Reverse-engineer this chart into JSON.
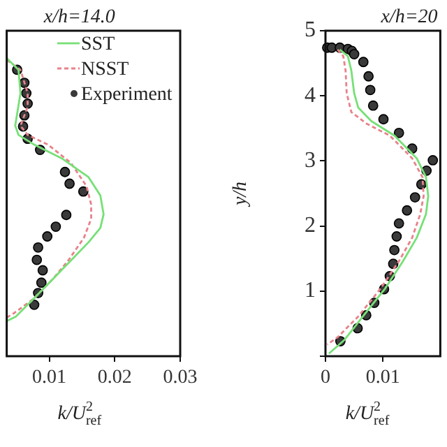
{
  "chart_data": [
    {
      "type": "line",
      "title": "x/h=14.0",
      "xlabel": "k/U$_{ref}$$^{2}$",
      "xlim": [
        0.0035,
        0.03
      ],
      "xticks": [
        0.01,
        0.02,
        0.03
      ],
      "ylim": [
        0,
        5
      ],
      "tick_labels": "x",
      "grid": false,
      "legend": "top right",
      "series": [
        {
          "name": "SST",
          "type": "line",
          "color": "#77e077",
          "line_style": "solid",
          "marker": "none",
          "x": [
            0.0035,
            0.0053,
            0.0056,
            0.0048,
            0.0053,
            0.0077,
            0.0119,
            0.016,
            0.0178,
            0.0183,
            0.0178,
            0.016,
            0.0133,
            0.0105,
            0.0077,
            0.0049,
            0.0035
          ],
          "values": [
            4.58,
            4.4,
            4.04,
            3.54,
            3.4,
            3.25,
            3.04,
            2.75,
            2.47,
            2.18,
            1.97,
            1.75,
            1.47,
            1.18,
            0.89,
            0.61,
            0.54
          ]
        },
        {
          "name": "NSST",
          "type": "line",
          "color": "#e8828a",
          "line_style": "dashed",
          "marker": "none",
          "x": [
            0.0035,
            0.0056,
            0.0067,
            0.0067,
            0.0056,
            0.0067,
            0.0098,
            0.0133,
            0.0157,
            0.0164,
            0.0164,
            0.0153,
            0.0129,
            0.0105,
            0.0077,
            0.0046,
            0.0036
          ],
          "values": [
            4.55,
            4.4,
            4.04,
            3.83,
            3.54,
            3.4,
            3.25,
            2.97,
            2.61,
            2.33,
            2.11,
            1.82,
            1.47,
            1.18,
            0.89,
            0.66,
            0.6
          ]
        },
        {
          "name": "Experiment",
          "type": "scatter",
          "color": "#3a3a3a",
          "marker": "circle",
          "x": [
            0.0051,
            0.0062,
            0.0065,
            0.0067,
            0.0062,
            0.006,
            0.0067,
            0.0086,
            0.0124,
            0.0131,
            0.0152,
            0.0126,
            0.011,
            0.0097,
            0.0083,
            0.0081,
            0.009,
            0.0088,
            0.0083,
            0.0077
          ],
          "values": [
            4.4,
            4.2,
            4.04,
            3.88,
            3.7,
            3.53,
            3.34,
            3.17,
            2.83,
            2.65,
            2.53,
            2.17,
            1.99,
            1.84,
            1.67,
            1.48,
            1.32,
            1.13,
            0.97,
            0.79
          ]
        }
      ]
    },
    {
      "type": "line",
      "title": "x/h=20",
      "xlabel": "k/U$_{ref}$$^{2}$",
      "ylabel": "y/h",
      "xlim": [
        0,
        0.02
      ],
      "xticks": [
        0,
        0.01
      ],
      "ylim": [
        0,
        5
      ],
      "yticks": [
        {
          "value": 0,
          "label": null
        },
        1,
        2,
        3,
        4,
        5
      ],
      "grid": false,
      "legend": false,
      "series": [
        {
          "type": "line",
          "color": "#77e077",
          "line_style": "solid",
          "marker": "none",
          "x": [
            0.0025,
            0.0039,
            0.0045,
            0.005,
            0.0057,
            0.008,
            0.012,
            0.0159,
            0.0175,
            0.0179,
            0.0175,
            0.0159,
            0.0135,
            0.0104,
            0.0065,
            0.0033,
            0.0006
          ],
          "values": [
            4.71,
            4.61,
            4.39,
            4.04,
            3.82,
            3.61,
            3.39,
            3.04,
            2.75,
            2.46,
            2.18,
            1.82,
            1.46,
            1.04,
            0.61,
            0.25,
            0.04
          ]
        },
        {
          "type": "line",
          "color": "#e8828a",
          "line_style": "dashed",
          "marker": "none",
          "x": [
            0.0021,
            0.0031,
            0.0035,
            0.0037,
            0.0045,
            0.0072,
            0.0112,
            0.0151,
            0.0169,
            0.0171,
            0.0165,
            0.0151,
            0.0128,
            0.0096,
            0.0057,
            0.0021,
            0.0003
          ],
          "values": [
            4.71,
            4.61,
            4.39,
            4.04,
            3.75,
            3.57,
            3.39,
            3.04,
            2.75,
            2.46,
            2.18,
            1.82,
            1.46,
            1.04,
            0.61,
            0.29,
            0.18
          ]
        },
        {
          "type": "scatter",
          "color": "#3a3a3a",
          "marker": "circle",
          "x": [
            0.0003,
            0.0011,
            0.0025,
            0.0039,
            0.0046,
            0.005,
            0.0066,
            0.0075,
            0.0078,
            0.0083,
            0.0101,
            0.0128,
            0.0151,
            0.0187,
            0.0176,
            0.0167,
            0.0156,
            0.0142,
            0.0128,
            0.0124,
            0.012,
            0.0118,
            0.0112,
            0.0102,
            0.0085,
            0.0071,
            0.0056,
            0.0026
          ],
          "values": [
            4.74,
            4.74,
            4.74,
            4.72,
            4.69,
            4.64,
            4.52,
            4.3,
            4.09,
            3.85,
            3.64,
            3.43,
            3.19,
            3.01,
            2.85,
            2.64,
            2.44,
            2.24,
            2.04,
            1.84,
            1.63,
            1.42,
            1.23,
            1.03,
            0.82,
            0.63,
            0.43,
            0.23
          ]
        }
      ]
    }
  ]
}
